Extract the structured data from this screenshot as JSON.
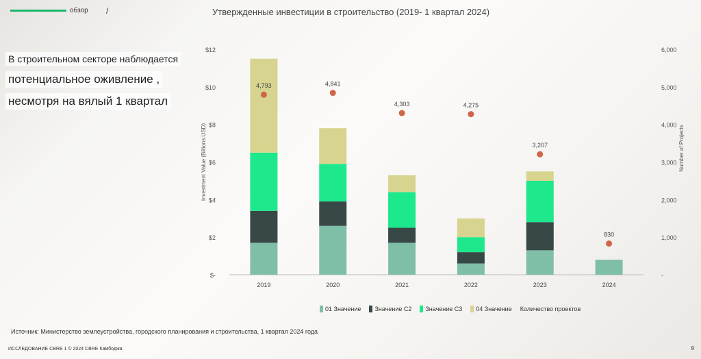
{
  "header": {
    "nav_label": "обзор",
    "title": "Утвержденные инвестиции в строительство (2019- 1 квартал 2024)"
  },
  "sidebar": {
    "line1": "В строительном секторе наблюдается",
    "line2": "потенциальное оживление ,",
    "line3": "несмотря на вялый 1 квартал"
  },
  "colors": {
    "q1": "#7fbfa8",
    "q2": "#374846",
    "q3": "#1de88b",
    "q4": "#d6d48f",
    "dots": "#d0654a",
    "accent": "#19b86b"
  },
  "chart_data": {
    "type": "bar",
    "stacked": true,
    "categories": [
      "2019",
      "2020",
      "2021",
      "2022",
      "2023",
      "2024"
    ],
    "series": [
      {
        "name": "01 Значение",
        "values": [
          1.7,
          2.6,
          1.7,
          0.6,
          1.3,
          0.8
        ]
      },
      {
        "name": "Значение С2",
        "values": [
          1.7,
          1.3,
          0.8,
          0.6,
          1.5,
          0
        ]
      },
      {
        "name": "Значение С3",
        "values": [
          3.1,
          2.0,
          1.9,
          0.8,
          2.2,
          0
        ]
      },
      {
        "name": "04 Значение",
        "values": [
          5.0,
          1.9,
          0.9,
          1.0,
          0.5,
          0
        ]
      }
    ],
    "line_series": {
      "name": "Количество проектов",
      "values": [
        4793,
        4841,
        4303,
        4275,
        3207,
        830
      ],
      "labels": [
        "4,793",
        "4,841",
        "4,303",
        "4,275",
        "3,207",
        "830"
      ]
    },
    "ylabel": "Investment Value (Billions USD)",
    "y2label": "Number of Projects",
    "ylim": [
      0,
      12
    ],
    "y2lim": [
      0,
      6000
    ],
    "y_ticks": [
      "$-",
      "$2",
      "$4",
      "$6",
      "$8",
      "$10",
      "$12"
    ],
    "y2_ticks": [
      "-",
      "1,000",
      "2,000",
      "3,000",
      "4,000",
      "5,000",
      "6,000"
    ]
  },
  "footer": {
    "source": "Источник: Министерство землеустройства, городского планирования и строительства, 1 квартал 2024 года",
    "copyright": "ИССЛЕДОВАНИЕ CBRE 1 © 2024 CBRE Камбоджа",
    "page_number": "9"
  }
}
